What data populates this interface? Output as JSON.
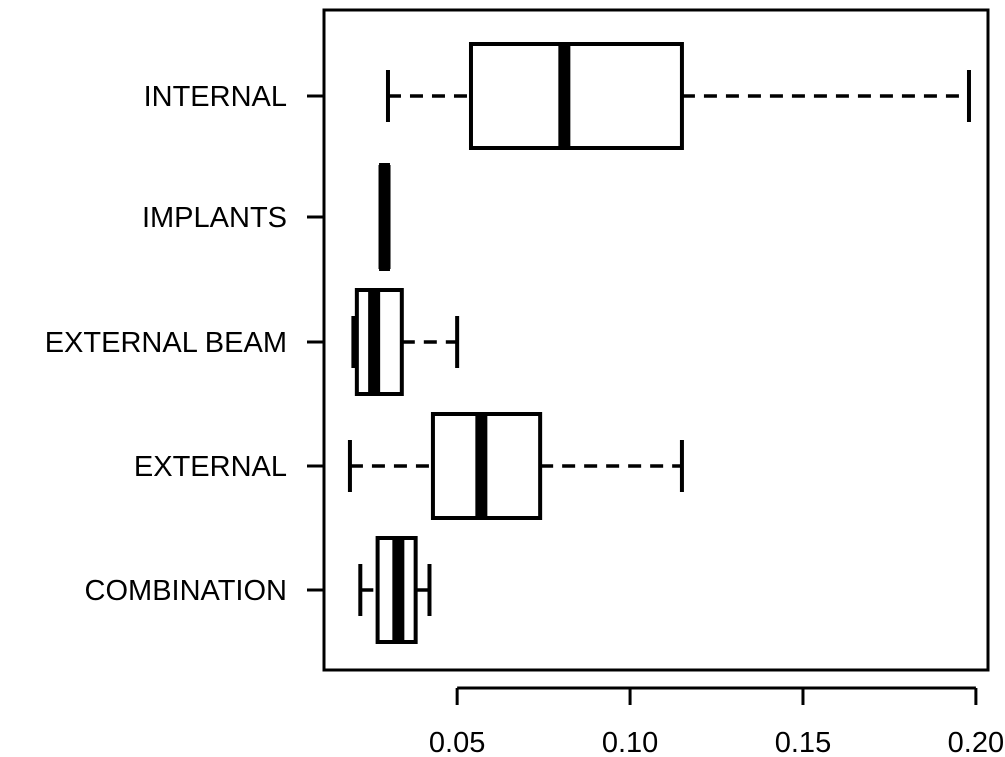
{
  "chart_data": {
    "type": "boxplot",
    "orientation": "horizontal",
    "title": "",
    "xlabel": "",
    "ylabel": "",
    "xlim": [
      0.0115,
      0.2035
    ],
    "x_ticks": [
      0.05,
      0.1,
      0.15,
      0.2
    ],
    "x_tick_labels": [
      "0.05",
      "0.10",
      "0.15",
      "0.20"
    ],
    "grid": false,
    "categories": [
      "INTERNAL",
      "IMPLANTS",
      "EXTERNAL BEAM",
      "EXTERNAL",
      "COMBINATION"
    ],
    "boxes": [
      {
        "label": "INTERNAL",
        "whisker_low": 0.03,
        "q1": 0.054,
        "median": 0.081,
        "q3": 0.115,
        "whisker_high": 0.198
      },
      {
        "label": "IMPLANTS",
        "whisker_low": 0.028,
        "q1": 0.028,
        "median": 0.029,
        "q3": 0.03,
        "whisker_high": 0.03
      },
      {
        "label": "EXTERNAL BEAM",
        "whisker_low": 0.02,
        "q1": 0.021,
        "median": 0.026,
        "q3": 0.034,
        "whisker_high": 0.05
      },
      {
        "label": "EXTERNAL",
        "whisker_low": 0.019,
        "q1": 0.043,
        "median": 0.057,
        "q3": 0.074,
        "whisker_high": 0.115
      },
      {
        "label": "COMBINATION",
        "whisker_low": 0.022,
        "q1": 0.027,
        "median": 0.033,
        "q3": 0.038,
        "whisker_high": 0.042
      }
    ],
    "colors": {
      "stroke": "#000000",
      "background": "#ffffff"
    }
  }
}
